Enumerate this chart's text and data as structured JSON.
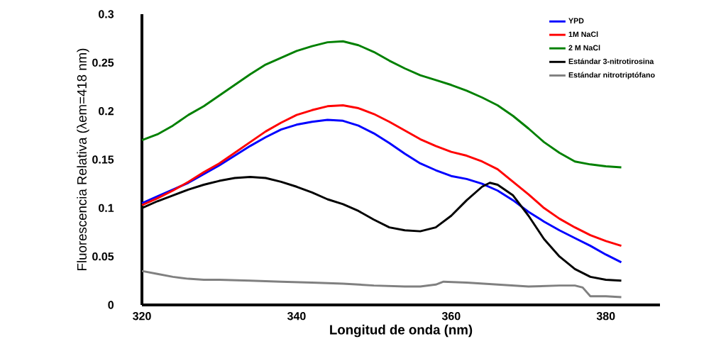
{
  "chart_data": {
    "type": "line",
    "xlabel": "Longitud de onda (nm)",
    "ylabel": "Fluorescencia Relativa (λem=418 nm)",
    "xlim": [
      320,
      387
    ],
    "ylim": [
      0,
      0.3
    ],
    "xticks": [
      320,
      340,
      360,
      380
    ],
    "yticks": [
      0,
      0.05,
      0.1,
      0.15,
      0.2,
      0.25,
      0.3
    ],
    "grid": false,
    "legend": "top right",
    "marker": "none",
    "line_style": "solid",
    "series": [
      {
        "name": "YPD",
        "color": "#0000ff",
        "x": [
          320,
          322,
          324,
          326,
          328,
          330,
          332,
          334,
          336,
          338,
          340,
          342,
          344,
          346,
          348,
          350,
          352,
          354,
          356,
          358,
          360,
          362,
          364,
          366,
          368,
          370,
          372,
          374,
          376,
          378,
          380,
          382
        ],
        "values": [
          0.105,
          0.112,
          0.119,
          0.126,
          0.135,
          0.144,
          0.154,
          0.164,
          0.173,
          0.181,
          0.186,
          0.189,
          0.191,
          0.19,
          0.185,
          0.177,
          0.167,
          0.156,
          0.146,
          0.139,
          0.133,
          0.13,
          0.125,
          0.118,
          0.108,
          0.096,
          0.086,
          0.077,
          0.069,
          0.061,
          0.052,
          0.044
        ]
      },
      {
        "name": "1M NaCl",
        "color": "#ff0000",
        "x": [
          320,
          322,
          324,
          326,
          328,
          330,
          332,
          334,
          336,
          338,
          340,
          342,
          344,
          346,
          348,
          350,
          352,
          354,
          356,
          358,
          360,
          362,
          364,
          366,
          368,
          370,
          372,
          374,
          376,
          378,
          380,
          382
        ],
        "values": [
          0.103,
          0.11,
          0.118,
          0.127,
          0.137,
          0.146,
          0.157,
          0.168,
          0.179,
          0.188,
          0.196,
          0.201,
          0.205,
          0.206,
          0.203,
          0.197,
          0.189,
          0.18,
          0.171,
          0.164,
          0.158,
          0.154,
          0.148,
          0.14,
          0.127,
          0.114,
          0.1,
          0.089,
          0.08,
          0.072,
          0.066,
          0.061
        ]
      },
      {
        "name": "2 M NaCl",
        "color": "#008000",
        "x": [
          320,
          322,
          324,
          326,
          328,
          330,
          332,
          334,
          336,
          338,
          340,
          342,
          344,
          346,
          348,
          350,
          352,
          354,
          356,
          358,
          360,
          362,
          364,
          366,
          368,
          370,
          372,
          374,
          376,
          378,
          380,
          382
        ],
        "values": [
          0.17,
          0.176,
          0.185,
          0.196,
          0.205,
          0.216,
          0.227,
          0.238,
          0.248,
          0.255,
          0.262,
          0.267,
          0.271,
          0.272,
          0.268,
          0.261,
          0.252,
          0.244,
          0.237,
          0.232,
          0.227,
          0.221,
          0.214,
          0.206,
          0.195,
          0.182,
          0.168,
          0.157,
          0.148,
          0.145,
          0.143,
          0.142
        ]
      },
      {
        "name": "Estándar 3-nitrotirosina",
        "color": "#000000",
        "x": [
          320,
          322,
          324,
          326,
          328,
          330,
          332,
          334,
          336,
          338,
          340,
          342,
          344,
          346,
          348,
          350,
          352,
          354,
          356,
          358,
          360,
          362,
          364,
          365,
          366,
          368,
          370,
          372,
          374,
          376,
          378,
          380,
          382
        ],
        "values": [
          0.1,
          0.107,
          0.113,
          0.119,
          0.124,
          0.128,
          0.131,
          0.132,
          0.131,
          0.127,
          0.122,
          0.116,
          0.109,
          0.104,
          0.097,
          0.088,
          0.08,
          0.077,
          0.076,
          0.08,
          0.092,
          0.108,
          0.122,
          0.126,
          0.124,
          0.113,
          0.092,
          0.068,
          0.05,
          0.037,
          0.029,
          0.026,
          0.025
        ]
      },
      {
        "name": "Estándar nitrotriptófano",
        "color": "#808080",
        "x": [
          320,
          322,
          324,
          326,
          328,
          330,
          334,
          338,
          342,
          346,
          350,
          354,
          356,
          358,
          359,
          362,
          366,
          370,
          374,
          376,
          377,
          378,
          380,
          382
        ],
        "values": [
          0.035,
          0.032,
          0.029,
          0.027,
          0.026,
          0.026,
          0.025,
          0.024,
          0.023,
          0.022,
          0.02,
          0.019,
          0.019,
          0.021,
          0.024,
          0.023,
          0.021,
          0.019,
          0.02,
          0.02,
          0.018,
          0.009,
          0.009,
          0.008
        ]
      }
    ]
  }
}
